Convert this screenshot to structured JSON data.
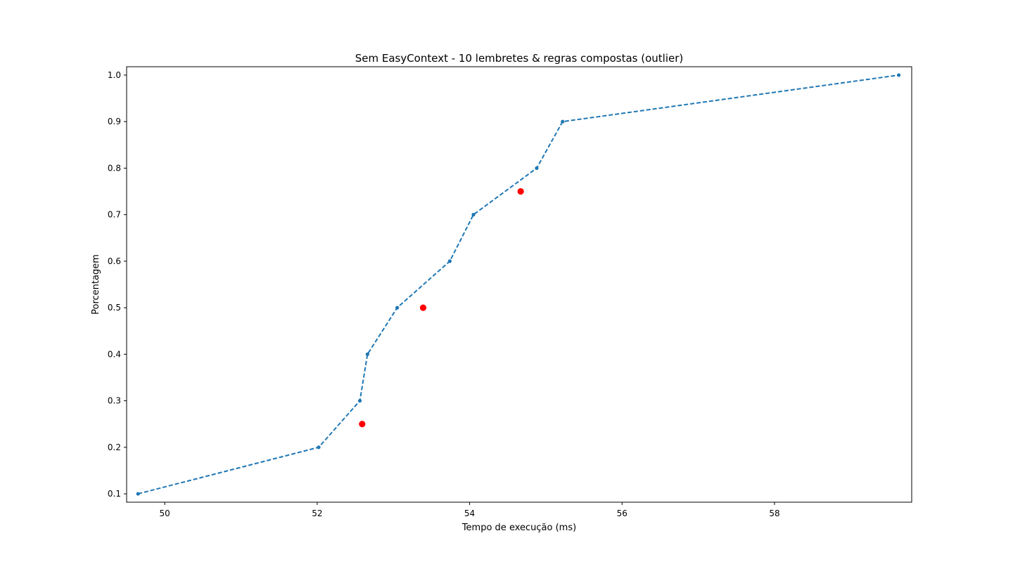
{
  "chart_data": {
    "type": "line",
    "title": "Sem EasyContext - 10 lembretes & regras compostas (outlier)",
    "xlabel": "Tempo de execução (ms)",
    "ylabel": "Porcentagem",
    "xlim": [
      49.5,
      59.8
    ],
    "ylim": [
      0.082,
      1.018
    ],
    "xticks": [
      50,
      52,
      54,
      56,
      58
    ],
    "yticks": [
      0.1,
      0.2,
      0.3,
      0.4,
      0.5,
      0.6,
      0.7,
      0.8,
      0.9,
      1.0
    ],
    "xtick_labels": [
      "50",
      "52",
      "54",
      "56",
      "58"
    ],
    "ytick_labels": [
      "0.1",
      "0.2",
      "0.3",
      "0.4",
      "0.5",
      "0.6",
      "0.7",
      "0.8",
      "0.9",
      "1.0"
    ],
    "grid": false,
    "series": [
      {
        "style": "dashed-line-with-dots",
        "color": "#1f77b4",
        "x": [
          49.65,
          52.02,
          52.56,
          52.66,
          53.05,
          53.74,
          54.05,
          54.88,
          55.22,
          59.63
        ],
        "y": [
          0.1,
          0.2,
          0.3,
          0.4,
          0.5,
          0.6,
          0.7,
          0.8,
          0.9,
          1.0
        ]
      },
      {
        "style": "scatter",
        "color": "#ff0000",
        "x": [
          52.59,
          53.39,
          54.67
        ],
        "y": [
          0.25,
          0.5,
          0.75
        ]
      }
    ]
  }
}
